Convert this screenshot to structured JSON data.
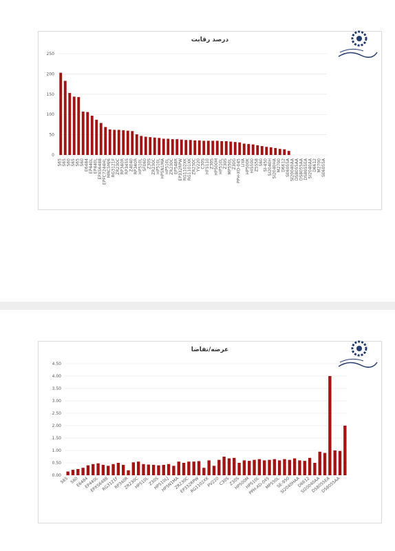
{
  "chart_data": [
    {
      "type": "bar",
      "title": "درصد رقابت",
      "color": "#a31515",
      "grid": true,
      "ylim": [
        0,
        250
      ],
      "yticks": [
        0,
        50,
        100,
        150,
        200,
        250
      ],
      "categories": [
        "S65",
        "S65",
        "S60",
        "S65",
        "S65",
        "S60",
        "E6484",
        "EP440L",
        "EP440L",
        "EPXS6488",
        "EPFC7244HL",
        "MRC5M/6",
        "RG3121F",
        "ZR230C",
        "RP340R",
        "RP345S",
        "Z4040",
        "RP340R",
        "HP510L",
        "SF060",
        "Z30S",
        "ZR230C",
        "HP510L",
        "HP5N1MA",
        "HP510L",
        "ZR230C",
        "EP548R",
        "EP332RPW",
        "RG1102XK",
        "RG1101XK",
        "ZR230C",
        "YV220",
        "C30S",
        "HF5110",
        "Z30S",
        "HP500M",
        "HP510L",
        "Z30S",
        "MP550L",
        "Z30G",
        "PPH-XD-045",
        "LIYA",
        "HP500K",
        "HI5500",
        "Z5S58",
        "S60",
        "SI-450",
        "SI2040H",
        "SI2040HA",
        "M2700",
        "D6612",
        "S06055A",
        "SI20040AA",
        "DS8055AA",
        "DS8055AA",
        "DS8055EA",
        "SI2040AA",
        "D6612",
        "M2700",
        "S06055A"
      ],
      "values": [
        203,
        183,
        153,
        144,
        143,
        107,
        106,
        97,
        87,
        79,
        69,
        63,
        62,
        62,
        61,
        60,
        59,
        51,
        47,
        45,
        44,
        43,
        42,
        40,
        40,
        39,
        39,
        38,
        37,
        37,
        36,
        36,
        35,
        35,
        35,
        35,
        34,
        34,
        33,
        32,
        31,
        28,
        27,
        26,
        24,
        22,
        20,
        19,
        17,
        15,
        14,
        10,
        0,
        0,
        0,
        0,
        0,
        0,
        0,
        0
      ]
    },
    {
      "type": "bar",
      "title": "عرضه/تقاضا",
      "color": "#a31515",
      "grid": true,
      "ylim": [
        0,
        4.5
      ],
      "yticks": [
        {
          "value": 0,
          "label": "0.00"
        },
        {
          "value": 0.5,
          "label": "0.50"
        },
        {
          "value": 1,
          "label": "1.00"
        },
        {
          "value": 1.5,
          "label": "1.50"
        },
        {
          "value": 2,
          "label": "2.00"
        },
        {
          "value": 2.5,
          "label": "2.50"
        },
        {
          "value": 3,
          "label": "3.00"
        },
        {
          "value": 3.5,
          "label": "3.50"
        },
        {
          "value": 4,
          "label": "4.00"
        },
        {
          "value": 4.5,
          "label": "4.50"
        }
      ],
      "categories": [
        "S65",
        null,
        "S60",
        null,
        "E6484",
        null,
        "EP440L",
        null,
        "EPXS6488",
        null,
        "RG3121F",
        null,
        "RP340R",
        null,
        "ZR230C",
        null,
        "HP510L",
        null,
        "Z30S",
        null,
        "HP510LJ",
        null,
        "HP5N1MA",
        null,
        "ZR230C",
        null,
        "EP332RPW",
        null,
        "RG1102XK",
        null,
        "PV220",
        null,
        "C30S",
        null,
        "Z30S",
        null,
        "HP500M",
        null,
        "HP510L",
        null,
        "PPH-XD-045",
        null,
        "MP550L",
        null,
        "SE-950",
        null,
        "SI2040HAA",
        null,
        "D6612",
        null,
        "SI20040AA",
        null,
        "DS8055EA",
        null,
        "DS8055AA",
        null
      ],
      "values": [
        0.15,
        0.22,
        0.25,
        0.3,
        0.4,
        0.45,
        0.48,
        0.42,
        0.38,
        0.45,
        0.5,
        0.42,
        0.2,
        0.52,
        0.55,
        0.45,
        0.43,
        0.42,
        0.4,
        0.42,
        0.45,
        0.38,
        0.55,
        0.5,
        0.55,
        0.55,
        0.57,
        0.3,
        0.6,
        0.38,
        0.62,
        0.75,
        0.68,
        0.7,
        0.5,
        0.6,
        0.58,
        0.62,
        0.65,
        0.6,
        0.62,
        0.65,
        0.6,
        0.65,
        0.62,
        0.68,
        0.6,
        0.58,
        0.7,
        0.5,
        0.95,
        0.9,
        4.0,
        1.0,
        0.98,
        2.0
      ]
    }
  ]
}
